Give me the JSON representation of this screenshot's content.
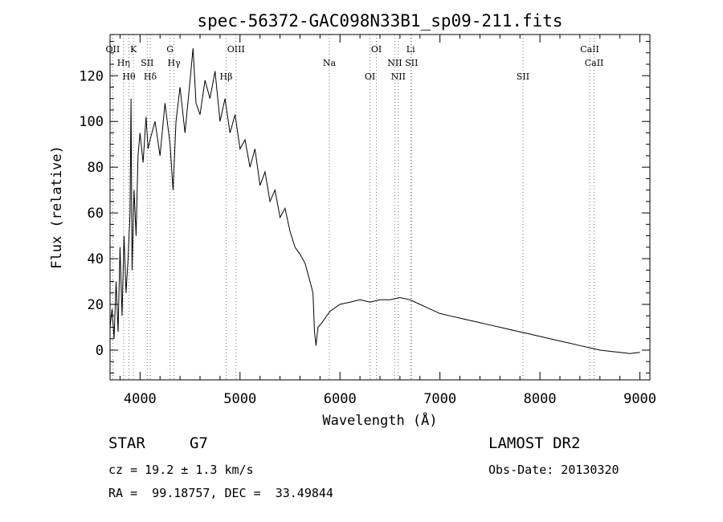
{
  "chart_data": {
    "type": "line",
    "title": "spec-56372-GAC098N33B1_sp09-211.fits",
    "xlabel": "Wavelength (Å)",
    "ylabel": "Flux (relative)",
    "xlim": [
      3700,
      9100
    ],
    "ylim": [
      -13,
      138
    ],
    "x_ticks": [
      4000,
      5000,
      6000,
      7000,
      8000,
      9000
    ],
    "y_ticks": [
      0,
      20,
      40,
      60,
      80,
      100,
      120
    ],
    "grid": false,
    "series": [
      {
        "points": [
          [
            3700,
            10
          ],
          [
            3720,
            18
          ],
          [
            3740,
            5
          ],
          [
            3760,
            30
          ],
          [
            3780,
            8
          ],
          [
            3800,
            45
          ],
          [
            3820,
            15
          ],
          [
            3840,
            50
          ],
          [
            3860,
            25
          ],
          [
            3880,
            40
          ],
          [
            3900,
            60
          ],
          [
            3910,
            110
          ],
          [
            3920,
            35
          ],
          [
            3940,
            70
          ],
          [
            3960,
            50
          ],
          [
            3980,
            85
          ],
          [
            4000,
            95
          ],
          [
            4030,
            82
          ],
          [
            4060,
            102
          ],
          [
            4080,
            88
          ],
          [
            4100,
            92
          ],
          [
            4150,
            100
          ],
          [
            4200,
            85
          ],
          [
            4250,
            108
          ],
          [
            4300,
            90
          ],
          [
            4330,
            70
          ],
          [
            4360,
            100
          ],
          [
            4400,
            115
          ],
          [
            4450,
            95
          ],
          [
            4500,
            118
          ],
          [
            4530,
            132
          ],
          [
            4560,
            108
          ],
          [
            4600,
            103
          ],
          [
            4650,
            118
          ],
          [
            4700,
            110
          ],
          [
            4750,
            122
          ],
          [
            4800,
            100
          ],
          [
            4850,
            110
          ],
          [
            4900,
            95
          ],
          [
            4950,
            103
          ],
          [
            5000,
            88
          ],
          [
            5050,
            92
          ],
          [
            5100,
            80
          ],
          [
            5150,
            88
          ],
          [
            5200,
            72
          ],
          [
            5250,
            78
          ],
          [
            5300,
            65
          ],
          [
            5350,
            70
          ],
          [
            5400,
            58
          ],
          [
            5450,
            62
          ],
          [
            5500,
            52
          ],
          [
            5550,
            45
          ],
          [
            5600,
            42
          ],
          [
            5650,
            38
          ],
          [
            5700,
            30
          ],
          [
            5730,
            25
          ],
          [
            5745,
            8
          ],
          [
            5760,
            2
          ],
          [
            5780,
            10
          ],
          [
            5820,
            12
          ],
          [
            5850,
            14
          ],
          [
            5900,
            17
          ],
          [
            6000,
            20
          ],
          [
            6100,
            21
          ],
          [
            6200,
            22
          ],
          [
            6300,
            21
          ],
          [
            6400,
            22
          ],
          [
            6500,
            22
          ],
          [
            6600,
            23
          ],
          [
            6700,
            22
          ],
          [
            6800,
            20
          ],
          [
            6900,
            18
          ],
          [
            7000,
            16
          ],
          [
            7100,
            15
          ],
          [
            7200,
            14
          ],
          [
            7300,
            13
          ],
          [
            7400,
            12
          ],
          [
            7500,
            11
          ],
          [
            7600,
            10
          ],
          [
            7700,
            9
          ],
          [
            7800,
            8
          ],
          [
            7900,
            7
          ],
          [
            8000,
            6
          ],
          [
            8100,
            5
          ],
          [
            8200,
            4
          ],
          [
            8300,
            3
          ],
          [
            8400,
            2
          ],
          [
            8500,
            1
          ],
          [
            8600,
            0
          ],
          [
            8700,
            -0.5
          ],
          [
            8800,
            -1
          ],
          [
            8900,
            -1.5
          ],
          [
            9000,
            -1
          ]
        ],
        "color": "#000000"
      }
    ],
    "lines": [
      {
        "x": 3727,
        "labels": [
          "OII"
        ]
      },
      {
        "x": 3835,
        "labels": [
          "Hη"
        ]
      },
      {
        "x": 3889,
        "labels": [
          "Hθ"
        ]
      },
      {
        "x": 3934,
        "labels": [
          "K"
        ]
      },
      {
        "x": 4072,
        "labels": [
          "SII"
        ]
      },
      {
        "x": 4102,
        "labels": [
          "Hδ"
        ]
      },
      {
        "x": 4300,
        "labels": [
          "G"
        ]
      },
      {
        "x": 4340,
        "labels": [
          "Hγ"
        ]
      },
      {
        "x": 4861,
        "labels": [
          "Hβ"
        ]
      },
      {
        "x": 4960,
        "labels": [
          "OIII"
        ]
      },
      {
        "x": 5893,
        "labels": [
          "Na"
        ]
      },
      {
        "x": 6300,
        "labels": [
          "OI"
        ]
      },
      {
        "x": 6364,
        "labels": [
          "OI"
        ]
      },
      {
        "x": 6548,
        "labels": [
          "NII"
        ]
      },
      {
        "x": 6583,
        "labels": [
          "NII"
        ]
      },
      {
        "x": 6707,
        "labels": [
          "Li"
        ]
      },
      {
        "x": 6716,
        "labels": [
          "SII"
        ]
      },
      {
        "x": 7830,
        "labels": [
          "SII"
        ]
      },
      {
        "x": 8498,
        "labels": [
          "CaII"
        ]
      },
      {
        "x": 8542,
        "labels": [
          "CaII"
        ]
      }
    ]
  },
  "info": {
    "object_type": "STAR",
    "subclass": "G7",
    "cz_text": "cz = 19.2 ± 1.3 km/s",
    "radec_text": "RA =  99.18757, DEC =  33.49844",
    "survey": "LAMOST DR2",
    "obs_date": "Obs-Date: 20130320"
  }
}
